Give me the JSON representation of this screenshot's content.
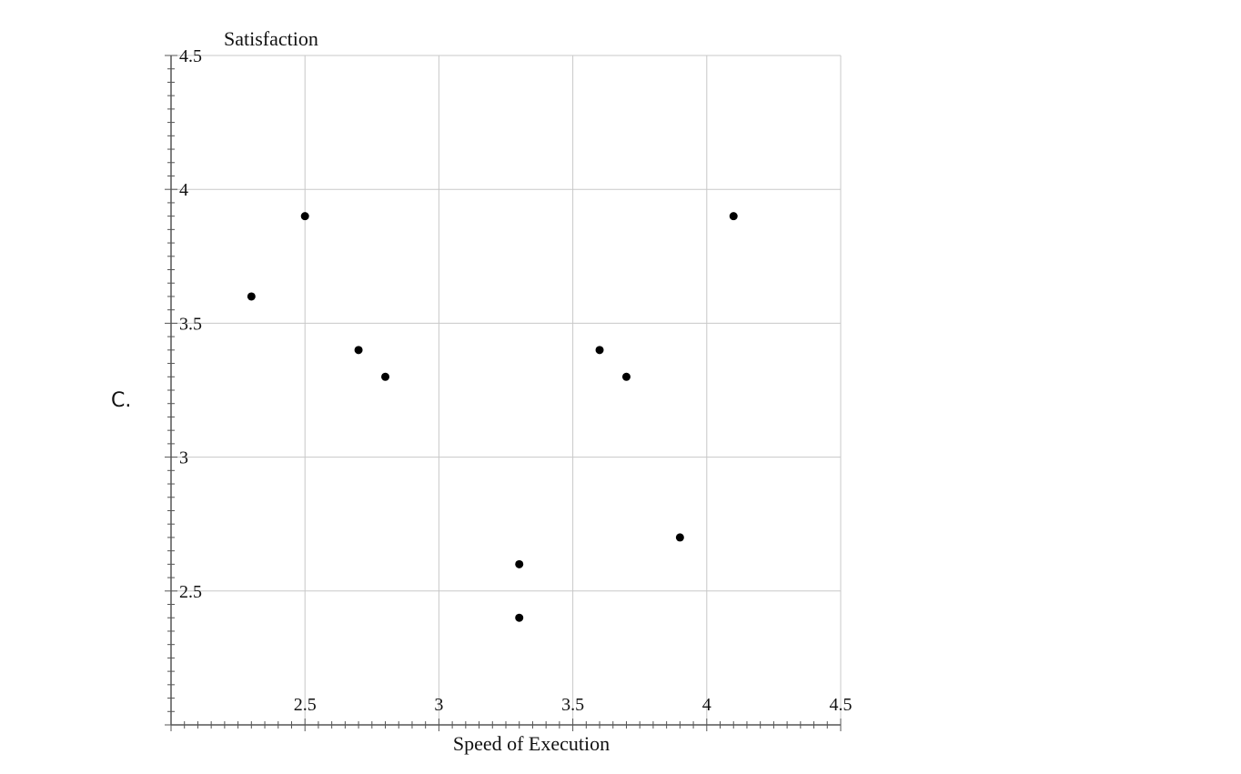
{
  "option_label": "C.",
  "chart_data": {
    "type": "scatter",
    "title": "",
    "xlabel": "Speed of Execution",
    "ylabel": "Satisfaction",
    "xlim": [
      2.0,
      4.5
    ],
    "ylim": [
      2.0,
      4.5
    ],
    "x_ticks": [
      2.5,
      3,
      3.5,
      4,
      4.5
    ],
    "y_ticks": [
      2.5,
      3,
      3.5,
      4,
      4.5
    ],
    "x_tick_labels": [
      "2.5",
      "3",
      "3.5",
      "4",
      "4.5"
    ],
    "y_tick_labels": [
      "2.5",
      "3",
      "3.5",
      "4",
      "4.5"
    ],
    "minor_tick_step": 0.05,
    "grid": true,
    "legend": "none",
    "marker_color": "#000000",
    "grid_color": "#c8c8c8",
    "points": [
      {
        "x": 2.3,
        "y": 3.6
      },
      {
        "x": 2.5,
        "y": 3.9
      },
      {
        "x": 2.7,
        "y": 3.4
      },
      {
        "x": 2.8,
        "y": 3.3
      },
      {
        "x": 3.3,
        "y": 2.6
      },
      {
        "x": 3.3,
        "y": 2.4
      },
      {
        "x": 3.6,
        "y": 3.4
      },
      {
        "x": 3.7,
        "y": 3.3
      },
      {
        "x": 3.9,
        "y": 2.7
      },
      {
        "x": 4.1,
        "y": 3.9
      }
    ]
  }
}
